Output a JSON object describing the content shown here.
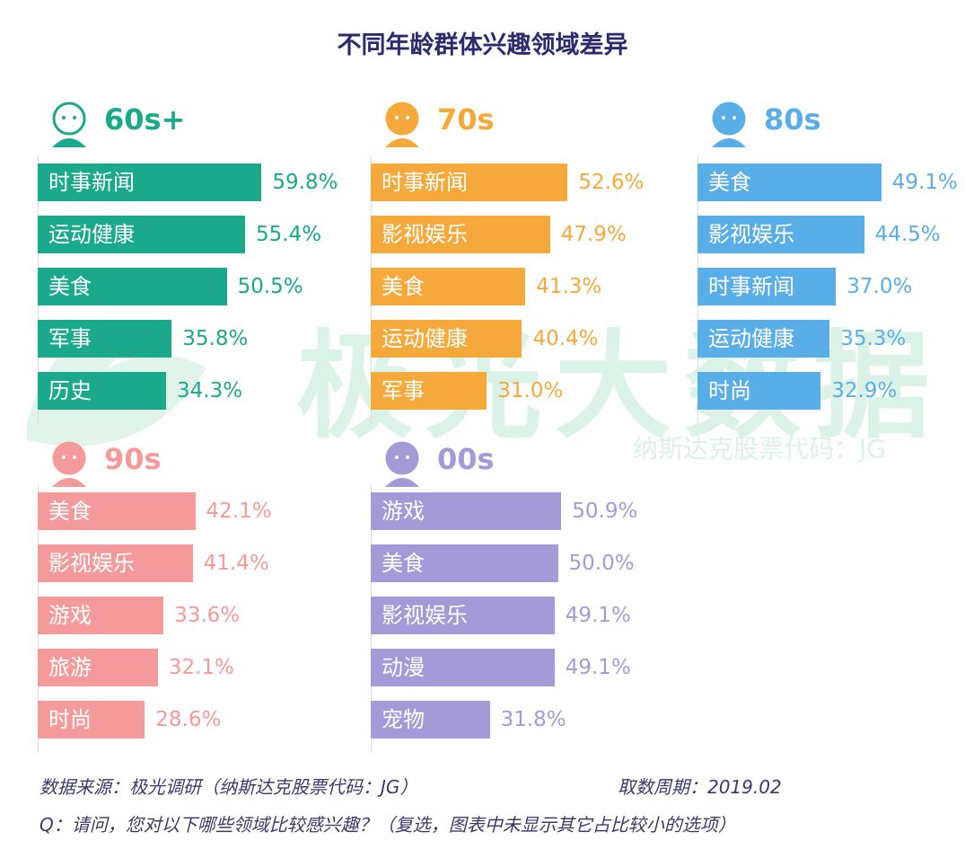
{
  "chart_data": {
    "type": "bar",
    "orientation": "horizontal",
    "title": "不同年龄群体兴趣领域差异",
    "unit": "%",
    "groups": [
      {
        "name": "60s+",
        "color": "#1aa98a",
        "icon": "elderly-man-icon",
        "categories": [
          "时事新闻",
          "运动健康",
          "美食",
          "军事",
          "历史"
        ],
        "values": [
          59.8,
          55.4,
          50.5,
          35.8,
          34.3
        ]
      },
      {
        "name": "70s",
        "color": "#f5a93a",
        "icon": "woman-icon",
        "categories": [
          "时事新闻",
          "影视娱乐",
          "美食",
          "运动健康",
          "军事"
        ],
        "values": [
          52.6,
          47.9,
          41.3,
          40.4,
          31.0
        ]
      },
      {
        "name": "80s",
        "color": "#5aaee8",
        "icon": "businessman-icon",
        "categories": [
          "美食",
          "影视娱乐",
          "时事新闻",
          "运动健康",
          "时尚"
        ],
        "values": [
          49.1,
          44.5,
          37.0,
          35.3,
          32.9
        ]
      },
      {
        "name": "90s",
        "color": "#f59a9a",
        "icon": "girl-icon",
        "categories": [
          "美食",
          "影视娱乐",
          "游戏",
          "旅游",
          "时尚"
        ],
        "values": [
          42.1,
          41.4,
          33.6,
          32.1,
          28.6
        ]
      },
      {
        "name": "00s",
        "color": "#a59ad8",
        "icon": "kid-globe-icon",
        "categories": [
          "游戏",
          "美食",
          "影视娱乐",
          "动漫",
          "宠物"
        ],
        "values": [
          50.9,
          50.0,
          49.1,
          49.1,
          31.8
        ]
      }
    ]
  },
  "watermark": {
    "main": "极光大数据",
    "sub": "纳斯达克股票代码：JG"
  },
  "footer": {
    "source": "数据来源：极光调研（纳斯达克股票代码：JG）",
    "period": "取数周期：2019.02",
    "question": "Q：请问，您对以下哪些领域比较感兴趣？（复选，图表中未显示其它占比较小的选项）"
  }
}
